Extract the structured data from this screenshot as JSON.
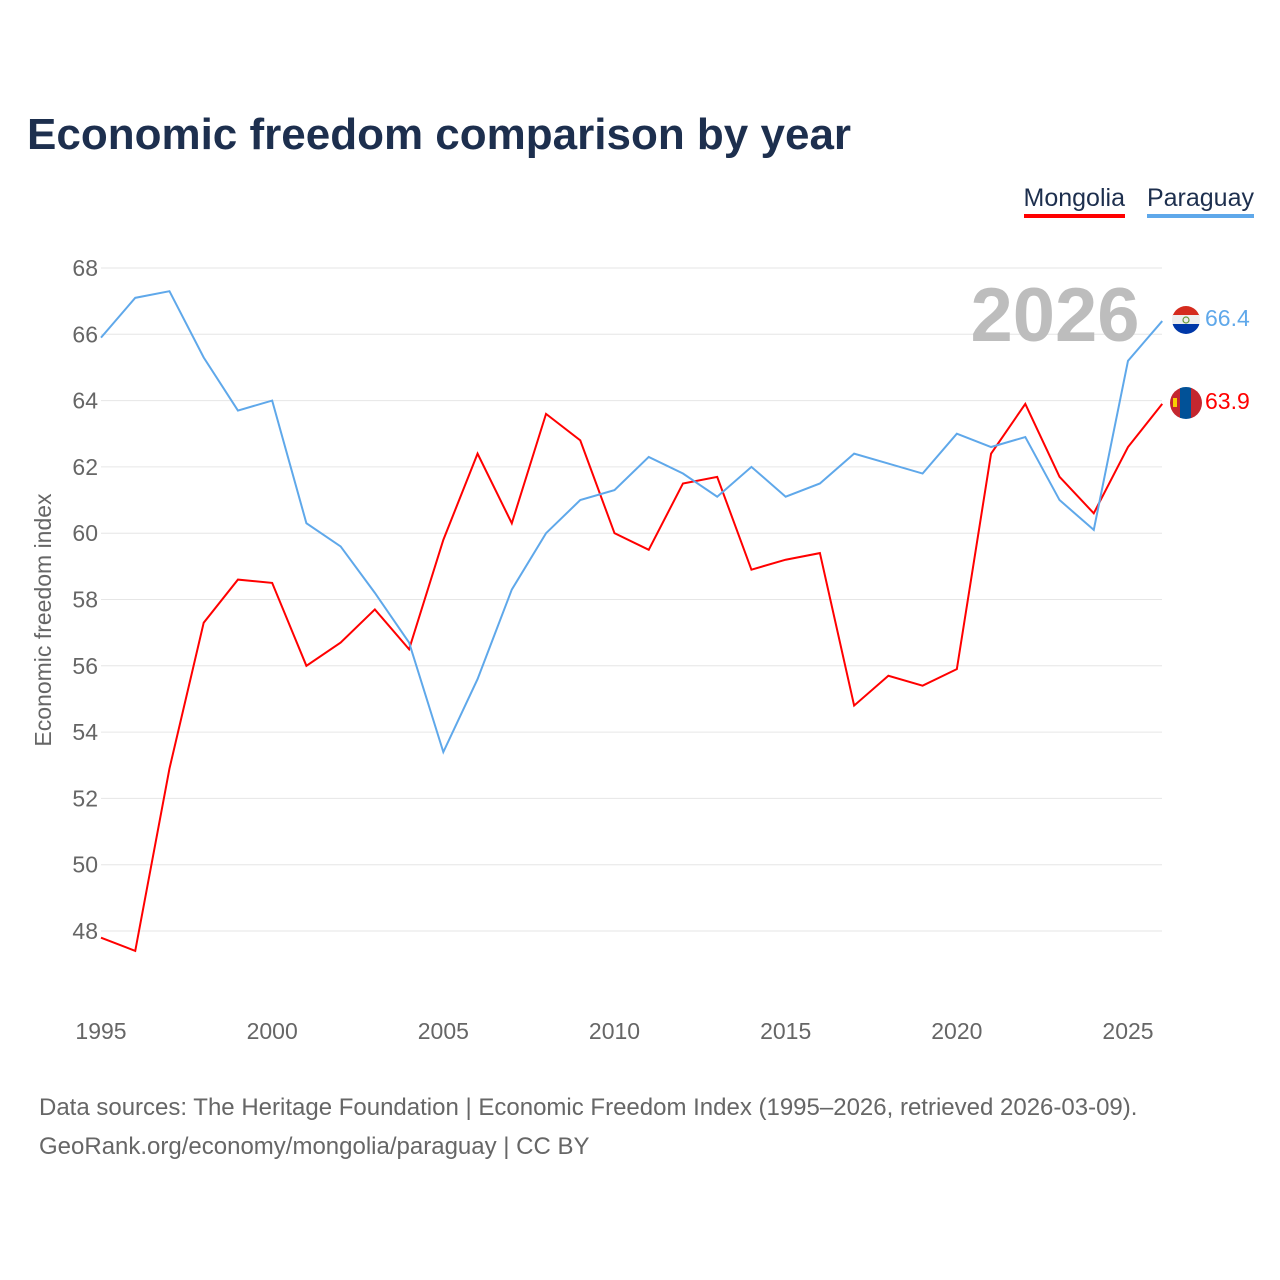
{
  "title": "Economic freedom comparison by year",
  "legend": [
    {
      "label": "Mongolia",
      "color": "#ff0000"
    },
    {
      "label": "Paraguay",
      "color": "#5fa8ea"
    }
  ],
  "year_watermark": "2026",
  "end_labels": {
    "mongolia": "63.9",
    "paraguay": "66.4"
  },
  "footer": {
    "line1": "Data sources: The Heritage Foundation | Economic Freedom Index (1995–2026, retrieved 2026-03-09).",
    "line2": "GeoRank.org/economy/mongolia/paraguay | CC BY"
  },
  "chart_data": {
    "type": "line",
    "title": "Economic freedom comparison by year",
    "xlabel": "",
    "ylabel": "Economic freedom index",
    "xlim": [
      1995,
      2026
    ],
    "ylim": [
      46,
      68.5
    ],
    "xticks": [
      1995,
      2000,
      2005,
      2010,
      2015,
      2020,
      2025
    ],
    "yticks": [
      48,
      50,
      52,
      54,
      56,
      58,
      60,
      62,
      64,
      66,
      68
    ],
    "grid": true,
    "legend_position": "top-right",
    "x": [
      1995,
      1996,
      1997,
      1998,
      1999,
      2000,
      2001,
      2002,
      2003,
      2004,
      2005,
      2006,
      2007,
      2008,
      2009,
      2010,
      2011,
      2012,
      2013,
      2014,
      2015,
      2016,
      2017,
      2018,
      2019,
      2020,
      2021,
      2022,
      2023,
      2024,
      2025,
      2026
    ],
    "series": [
      {
        "name": "Mongolia",
        "color": "#ff0000",
        "values": [
          47.8,
          47.4,
          52.9,
          57.3,
          58.6,
          58.5,
          56.0,
          56.7,
          57.7,
          56.5,
          59.8,
          62.4,
          60.3,
          63.6,
          62.8,
          60.0,
          59.5,
          61.5,
          61.7,
          58.9,
          59.2,
          59.4,
          54.8,
          55.7,
          55.4,
          55.9,
          62.4,
          63.9,
          61.7,
          60.6,
          62.6,
          63.9
        ]
      },
      {
        "name": "Paraguay",
        "color": "#5fa8ea",
        "values": [
          65.9,
          67.1,
          67.3,
          65.3,
          63.7,
          64.0,
          60.3,
          59.6,
          58.2,
          56.7,
          53.4,
          55.6,
          58.3,
          60.0,
          61.0,
          61.3,
          62.3,
          61.8,
          61.1,
          62.0,
          61.1,
          61.5,
          62.4,
          62.1,
          61.8,
          63.0,
          62.6,
          62.9,
          61.0,
          60.1,
          65.2,
          66.4
        ]
      }
    ]
  }
}
